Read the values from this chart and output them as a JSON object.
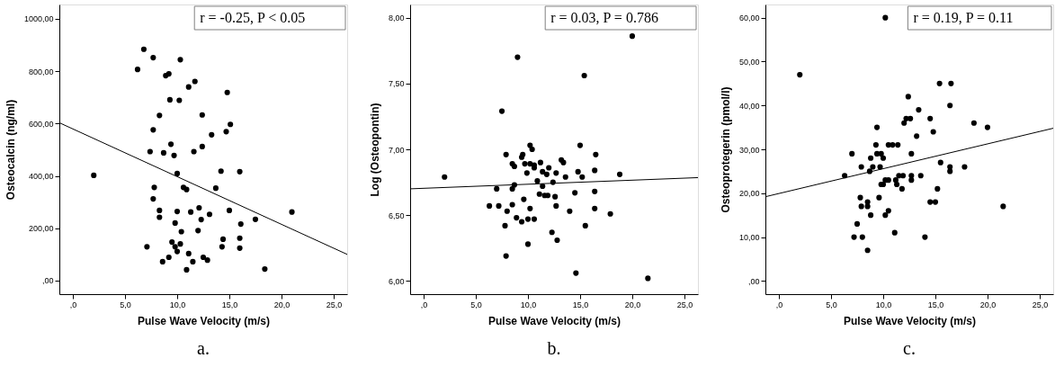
{
  "chart_data": [
    {
      "type": "scatter",
      "xlabel": "Pulse Wave Velocity (m/s)",
      "ylabel": "Osteocalcin (ng/ml)",
      "annotations": [
        "r = -0.25, P < 0.05",
        "a."
      ],
      "grid": false,
      "marker": "circle",
      "xlim": [
        -1.3,
        26.3
      ],
      "ylim": [
        -52,
        1055
      ],
      "xticks": [
        {
          "value": 0,
          "label": ",0"
        },
        {
          "value": 5,
          "label": "5,0"
        },
        {
          "value": 10,
          "label": "10,0"
        },
        {
          "value": 15,
          "label": "15,0"
        },
        {
          "value": 20,
          "label": "20,0"
        },
        {
          "value": 25,
          "label": "25,0"
        }
      ],
      "yticks": [
        {
          "value": 0,
          "label": ",00"
        },
        {
          "value": 200,
          "label": "200,00"
        },
        {
          "value": 400,
          "label": "400,00"
        },
        {
          "value": 600,
          "label": "600,00"
        },
        {
          "value": 800,
          "label": "800,00"
        },
        {
          "value": 1000,
          "label": "1000,00"
        }
      ],
      "series": [
        {
          "color": "#000000",
          "x": [
            6.8,
            6.2,
            7.7,
            10.3,
            8.9,
            9.2,
            11.7,
            11.1,
            14.8,
            9.3,
            10.2,
            8.3,
            12.4,
            7.7,
            15.1,
            14.7,
            13.3,
            9.4,
            12.4,
            7.4,
            8.7,
            11.6,
            9.7,
            2.0,
            10.0,
            14.2,
            16.0,
            7.8,
            10.6,
            10.9,
            13.7,
            7.7,
            8.3,
            8.3,
            10.0,
            11.3,
            12.1,
            13.1,
            15.0,
            21.0,
            17.5,
            12.3,
            9.8,
            16.1,
            10.4,
            12.0,
            14.4,
            16.0,
            9.5,
            10.3,
            7.1,
            9.8,
            14.3,
            16.0,
            10.0,
            11.1,
            9.2,
            12.5,
            12.9,
            8.6,
            11.5,
            10.9,
            18.4
          ],
          "values": [
            884,
            807,
            852,
            844,
            783,
            790,
            761,
            740,
            719,
            691,
            689,
            631,
            633,
            576,
            597,
            569,
            557,
            521,
            512,
            493,
            488,
            493,
            478,
            402,
            409,
            418,
            416,
            356,
            356,
            348,
            353,
            312,
            268,
            242,
            264,
            262,
            278,
            253,
            268,
            262,
            234,
            233,
            220,
            216,
            187,
            191,
            158,
            162,
            147,
            140,
            129,
            129,
            129,
            124,
            111,
            103,
            89,
            89,
            78,
            72,
            72,
            41,
            44
          ]
        },
        {
          "type": "line",
          "marker": "none",
          "color": "#000000",
          "x": [
            -1.3,
            26.3
          ],
          "values": [
            603,
            100
          ]
        }
      ]
    },
    {
      "type": "scatter",
      "xlabel": "Pulse Wave Velocity (m/s)",
      "ylabel": "Log (Osteopontin)",
      "annotations": [
        "r = 0.03, P = 0.786",
        "b."
      ],
      "grid": false,
      "marker": "circle",
      "xlim": [
        -1.3,
        26.3
      ],
      "ylim": [
        5.9,
        8.1
      ],
      "xticks": [
        {
          "value": 0,
          "label": ",0"
        },
        {
          "value": 5,
          "label": "5,0"
        },
        {
          "value": 10,
          "label": "10,0"
        },
        {
          "value": 15,
          "label": "15,0"
        },
        {
          "value": 20,
          "label": "20,0"
        },
        {
          "value": 25,
          "label": "25,0"
        }
      ],
      "yticks": [
        {
          "value": 6,
          "label": "6,00"
        },
        {
          "value": 6.5,
          "label": "6,50"
        },
        {
          "value": 7,
          "label": "7,00"
        },
        {
          "value": 7.5,
          "label": "7,50"
        },
        {
          "value": 8,
          "label": "8,00"
        }
      ],
      "series": [
        {
          "color": "#000000",
          "x": [
            9.0,
            7.5,
            15.4,
            20.0,
            2.0,
            10.2,
            10.4,
            15.0,
            16.5,
            7.9,
            9.5,
            9.4,
            8.5,
            8.7,
            9.7,
            10.2,
            10.6,
            10.6,
            11.2,
            12.0,
            13.2,
            13.4,
            9.9,
            11.4,
            11.8,
            12.7,
            13.6,
            14.8,
            15.2,
            16.4,
            18.8,
            8.7,
            8.5,
            7.0,
            10.9,
            12.4,
            11.4,
            11.1,
            11.6,
            11.9,
            12.6,
            14.5,
            16.4,
            9.6,
            6.3,
            7.2,
            8.5,
            12.7,
            10.2,
            16.4,
            8.0,
            14.0,
            17.9,
            8.9,
            9.4,
            10.0,
            10.6,
            7.8,
            15.5,
            12.3,
            12.8,
            10.0,
            7.9,
            14.6,
            21.5
          ],
          "values": [
            7.7,
            7.29,
            7.56,
            7.86,
            6.79,
            7.03,
            7.0,
            7.03,
            6.96,
            6.96,
            6.96,
            6.94,
            6.89,
            6.87,
            6.89,
            6.89,
            6.88,
            6.86,
            6.9,
            6.86,
            6.92,
            6.9,
            6.82,
            6.83,
            6.81,
            6.82,
            6.79,
            6.83,
            6.79,
            6.84,
            6.81,
            6.73,
            6.7,
            6.7,
            6.76,
            6.75,
            6.72,
            6.66,
            6.65,
            6.65,
            6.64,
            6.67,
            6.68,
            6.62,
            6.57,
            6.57,
            6.58,
            6.57,
            6.55,
            6.55,
            6.53,
            6.53,
            6.51,
            6.48,
            6.45,
            6.47,
            6.47,
            6.42,
            6.42,
            6.37,
            6.31,
            6.28,
            6.19,
            6.06,
            6.02
          ]
        },
        {
          "type": "line",
          "marker": "none",
          "color": "#000000",
          "x": [
            -1.3,
            26.3
          ],
          "values": [
            6.7,
            6.785
          ]
        }
      ]
    },
    {
      "type": "scatter",
      "xlabel": "Pulse Wave Velocity (m/s)",
      "ylabel": "Osteoprotegerin (pmol/l)",
      "annotations": [
        "r = 0.19, P = 0.11",
        "c."
      ],
      "grid": false,
      "marker": "circle",
      "xlim": [
        -1.3,
        26.3
      ],
      "ylim": [
        -3,
        63
      ],
      "xticks": [
        {
          "value": 0,
          "label": ",0"
        },
        {
          "value": 5,
          "label": "5,0"
        },
        {
          "value": 10,
          "label": "10,0"
        },
        {
          "value": 15,
          "label": "15,0"
        },
        {
          "value": 20,
          "label": "20,0"
        },
        {
          "value": 25,
          "label": "25,0"
        }
      ],
      "yticks": [
        {
          "value": 0,
          "label": ",00"
        },
        {
          "value": 10,
          "label": "10,00"
        },
        {
          "value": 20,
          "label": "20,00"
        },
        {
          "value": 30,
          "label": "30,00"
        },
        {
          "value": 40,
          "label": "40,00"
        },
        {
          "value": 50,
          "label": "50,00"
        },
        {
          "value": 60,
          "label": "60,00"
        }
      ],
      "series": [
        {
          "color": "#000000",
          "x": [
            10.2,
            2.0,
            15.4,
            16.5,
            12.4,
            16.4,
            13.4,
            12.2,
            12.6,
            14.5,
            12.0,
            18.7,
            9.4,
            20.0,
            14.8,
            13.2,
            9.3,
            10.5,
            10.9,
            11.4,
            7.0,
            9.4,
            9.8,
            12.7,
            8.8,
            10.0,
            7.9,
            9.0,
            9.7,
            16.4,
            17.8,
            15.5,
            16.4,
            8.7,
            6.3,
            11.5,
            11.9,
            12.7,
            13.6,
            12.7,
            10.2,
            10.5,
            11.2,
            9.8,
            10.0,
            11.3,
            11.8,
            15.2,
            7.8,
            9.6,
            8.5,
            14.5,
            15.0,
            7.9,
            8.5,
            21.5,
            10.5,
            8.8,
            10.2,
            7.5,
            11.1,
            7.2,
            8.0,
            14.0,
            8.5
          ],
          "values": [
            60,
            47,
            45,
            45,
            42,
            40,
            39,
            37,
            37,
            37,
            36,
            36,
            35,
            35,
            34,
            33,
            31,
            31,
            31,
            31,
            29,
            29,
            29,
            29,
            28,
            28,
            26,
            26,
            26,
            26,
            26,
            27,
            25,
            25,
            24,
            24,
            24,
            24,
            24,
            23,
            23,
            23,
            23,
            22,
            22,
            22,
            21,
            21,
            19,
            19,
            18,
            18,
            18,
            17,
            17,
            17,
            16,
            15,
            15,
            13,
            11,
            10,
            10,
            10,
            7
          ]
        },
        {
          "type": "line",
          "marker": "none",
          "color": "#000000",
          "x": [
            -1.3,
            26.3
          ],
          "values": [
            19.2,
            34.8
          ]
        }
      ]
    }
  ]
}
